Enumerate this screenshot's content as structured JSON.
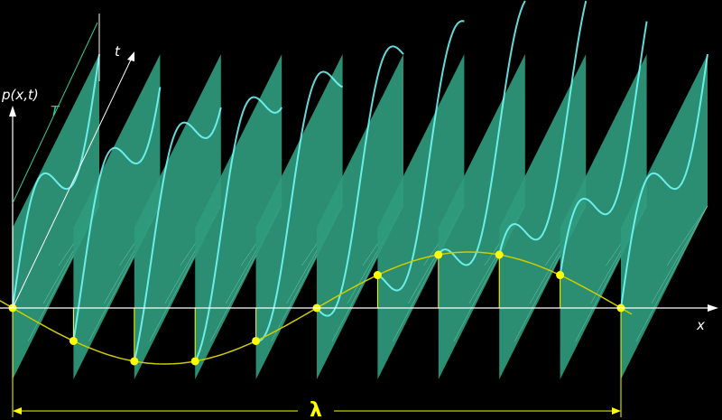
{
  "labels": {
    "p_axis": "p(x,t)",
    "t_axis": "t",
    "period": "T",
    "x_axis": "x",
    "wavelength": "λ"
  }
}
